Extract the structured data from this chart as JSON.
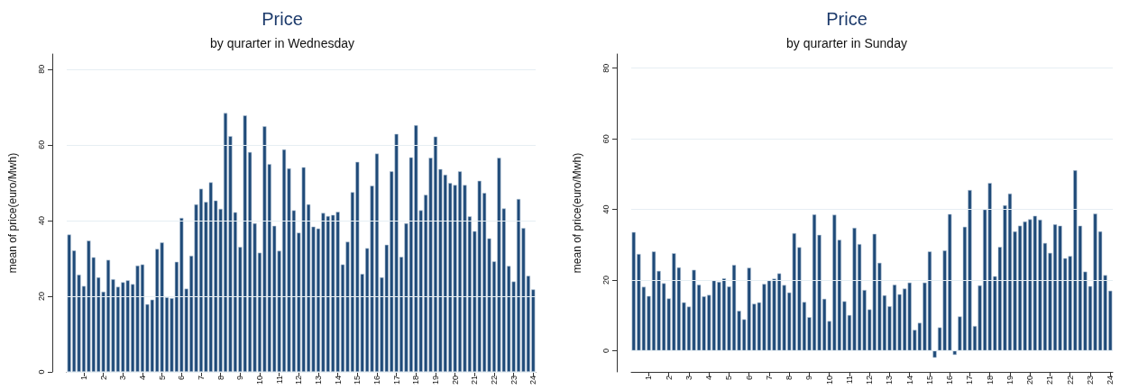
{
  "chart_data": [
    {
      "type": "bar",
      "title": "Price",
      "subtitle": "by qurarter in Wednesday",
      "ylabel": "mean of price(euro/Mwh)",
      "categories": [
        null,
        null,
        null,
        "1",
        null,
        null,
        null,
        "2",
        null,
        null,
        null,
        "3",
        null,
        null,
        null,
        "4",
        null,
        null,
        null,
        "5",
        null,
        null,
        null,
        "6",
        null,
        null,
        null,
        "7",
        null,
        null,
        null,
        "8",
        null,
        null,
        null,
        "9",
        null,
        null,
        null,
        "10",
        null,
        null,
        null,
        "11",
        null,
        null,
        null,
        "12",
        null,
        null,
        null,
        "13",
        null,
        null,
        null,
        "14",
        null,
        null,
        null,
        "15",
        null,
        null,
        null,
        "16",
        null,
        null,
        null,
        "17",
        null,
        null,
        null,
        "18",
        null,
        null,
        null,
        "19",
        null,
        null,
        null,
        "20",
        null,
        null,
        null,
        "21",
        null,
        null,
        null,
        "22",
        null,
        null,
        null,
        "23",
        null,
        null,
        null,
        "24"
      ],
      "values": [
        36.3,
        32.1,
        25.7,
        22.7,
        34.7,
        30.3,
        25.0,
        21.2,
        29.6,
        24.5,
        22.5,
        23.7,
        24.2,
        23.2,
        28.1,
        28.4,
        17.9,
        19.1,
        32.5,
        34.2,
        19.7,
        19.5,
        29.1,
        40.7,
        22.0,
        30.7,
        44.3,
        48.4,
        44.9,
        50.1,
        45.3,
        43.1,
        68.4,
        62.3,
        42.2,
        33.0,
        67.8,
        58.1,
        39.3,
        31.5,
        64.9,
        54.9,
        38.6,
        32.0,
        58.8,
        53.8,
        42.7,
        36.8,
        54.1,
        44.3,
        38.4,
        37.9,
        42.0,
        41.2,
        41.5,
        42.3,
        28.4,
        34.4,
        47.5,
        55.5,
        25.9,
        32.7,
        49.2,
        57.7,
        25.0,
        33.6,
        53.0,
        62.9,
        30.4,
        39.3,
        56.7,
        65.2,
        42.7,
        46.8,
        56.6,
        62.2,
        53.6,
        52.1,
        49.9,
        49.4,
        53.0,
        49.4,
        41.1,
        37.2,
        50.5,
        47.3,
        35.3,
        29.2,
        56.6,
        43.2,
        28.0,
        23.9,
        45.7,
        38.0,
        25.4,
        21.8
      ],
      "color": "#1f4a78",
      "ylim": [
        0,
        84
      ],
      "yticks": [
        0,
        20,
        40,
        60,
        80
      ],
      "grid": "y"
    },
    {
      "type": "bar",
      "title": "Price",
      "subtitle": "by qurarter in Sunday",
      "ylabel": "mean of price(euro/Mwh)",
      "categories": [
        null,
        null,
        null,
        "1",
        null,
        null,
        null,
        "2",
        null,
        null,
        null,
        "3",
        null,
        null,
        null,
        "4",
        null,
        null,
        null,
        "5",
        null,
        null,
        null,
        "6",
        null,
        null,
        null,
        "7",
        null,
        null,
        null,
        "8",
        null,
        null,
        null,
        "9",
        null,
        null,
        null,
        "10",
        null,
        null,
        null,
        "11",
        null,
        null,
        null,
        "12",
        null,
        null,
        null,
        "13",
        null,
        null,
        null,
        "14",
        null,
        null,
        null,
        "15",
        null,
        null,
        null,
        "16",
        null,
        null,
        null,
        "17",
        null,
        null,
        null,
        "18",
        null,
        null,
        null,
        "19",
        null,
        null,
        null,
        "20",
        null,
        null,
        null,
        "21",
        null,
        null,
        null,
        "22",
        null,
        null,
        null,
        "23",
        null,
        null,
        null,
        "24"
      ],
      "values": [
        33.6,
        27.4,
        18.1,
        15.5,
        28.1,
        22.6,
        19.1,
        14.8,
        27.6,
        23.6,
        13.7,
        12.5,
        22.9,
        18.7,
        15.4,
        15.8,
        19.9,
        19.5,
        20.5,
        18.2,
        24.3,
        11.3,
        8.9,
        23.5,
        13.3,
        13.7,
        18.9,
        19.9,
        20.4,
        21.9,
        18.6,
        16.5,
        33.3,
        29.3,
        13.8,
        9.5,
        38.6,
        32.8,
        14.7,
        8.4,
        38.5,
        31.4,
        14.0,
        10.1,
        34.8,
        30.2,
        17.2,
        11.7,
        33.1,
        24.9,
        15.7,
        12.6,
        18.7,
        16.0,
        17.6,
        19.3,
        5.9,
        7.9,
        19.3,
        28.1,
        -2.0,
        6.6,
        28.4,
        38.7,
        -1.2,
        9.7,
        35.1,
        45.5,
        7.0,
        18.5,
        40.0,
        47.5,
        21.1,
        29.4,
        41.2,
        44.5,
        33.8,
        35.4,
        36.6,
        37.2,
        38.2,
        37.1,
        30.5,
        27.7,
        35.8,
        35.4,
        26.2,
        26.8,
        51.1,
        35.4,
        22.4,
        18.3,
        38.8,
        33.8,
        21.4,
        17.0
      ],
      "color": "#1f4a78",
      "ylim": [
        -6,
        84
      ],
      "yticks": [
        0,
        20,
        40,
        60,
        80
      ],
      "grid": "y"
    }
  ]
}
